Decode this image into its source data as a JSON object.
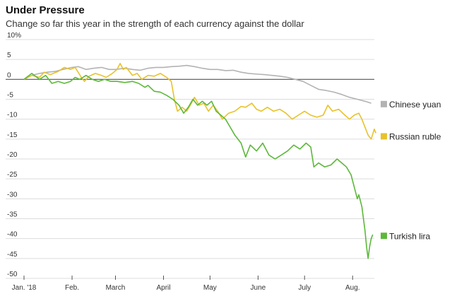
{
  "chart_data": {
    "type": "line",
    "title": "Under Pressure",
    "subtitle": "Change so far this year in the strength of each currency against the dollar",
    "y_unit_top_label": "10%",
    "ylim": [
      -50,
      10
    ],
    "y_ticks": [
      10,
      5,
      0,
      -5,
      -10,
      -15,
      -20,
      -25,
      -30,
      -35,
      -40,
      -45,
      -50
    ],
    "y_tick_labels": [
      "10%",
      "5",
      "0",
      "-5",
      "-10",
      "-15",
      "-20",
      "-25",
      "-30",
      "-35",
      "-40",
      "-45",
      "-50"
    ],
    "xlim": [
      0,
      226
    ],
    "x_ticks": [
      0,
      31,
      59,
      90,
      120,
      151,
      181,
      212
    ],
    "x_tick_labels": [
      "Jan. '18",
      "Feb.",
      "March",
      "April",
      "May",
      "June",
      "July",
      "Aug."
    ],
    "x_unit": "days since start of year",
    "grid": "horizontal",
    "legend_placement": "right, beside line ends",
    "series": [
      {
        "name": "Chinese yuan",
        "color": "#b3b3b3",
        "points": [
          [
            0,
            0
          ],
          [
            5,
            1
          ],
          [
            10,
            1.5
          ],
          [
            15,
            1.8
          ],
          [
            20,
            2
          ],
          [
            25,
            2.5
          ],
          [
            31,
            3
          ],
          [
            35,
            3.2
          ],
          [
            40,
            2.5
          ],
          [
            45,
            2.8
          ],
          [
            50,
            3
          ],
          [
            55,
            2.5
          ],
          [
            59,
            2.5
          ],
          [
            65,
            2.8
          ],
          [
            70,
            2.5
          ],
          [
            75,
            2.3
          ],
          [
            80,
            2.8
          ],
          [
            85,
            3
          ],
          [
            90,
            3
          ],
          [
            95,
            3.2
          ],
          [
            100,
            3.3
          ],
          [
            105,
            3.5
          ],
          [
            110,
            3.2
          ],
          [
            115,
            2.8
          ],
          [
            120,
            2.5
          ],
          [
            125,
            2.5
          ],
          [
            130,
            2.2
          ],
          [
            135,
            2.3
          ],
          [
            140,
            1.8
          ],
          [
            145,
            1.5
          ],
          [
            151,
            1.3
          ],
          [
            155,
            1.2
          ],
          [
            160,
            1
          ],
          [
            165,
            0.8
          ],
          [
            170,
            0.5
          ],
          [
            175,
            0
          ],
          [
            180,
            -0.5
          ],
          [
            185,
            -1.5
          ],
          [
            190,
            -2.5
          ],
          [
            195,
            -2.8
          ],
          [
            200,
            -3.2
          ],
          [
            205,
            -3.8
          ],
          [
            210,
            -4.5
          ],
          [
            215,
            -5
          ],
          [
            220,
            -5.5
          ],
          [
            224,
            -6
          ]
        ]
      },
      {
        "name": "Russian ruble",
        "color": "#e8c22b",
        "points": [
          [
            0,
            0
          ],
          [
            5,
            1
          ],
          [
            10,
            0.5
          ],
          [
            13,
            1.8
          ],
          [
            17,
            1.2
          ],
          [
            22,
            2
          ],
          [
            26,
            3
          ],
          [
            30,
            2.5
          ],
          [
            33,
            3
          ],
          [
            37,
            0.5
          ],
          [
            39,
            -0.5
          ],
          [
            42,
            0.8
          ],
          [
            46,
            1.5
          ],
          [
            50,
            1
          ],
          [
            53,
            0.5
          ],
          [
            57,
            1.5
          ],
          [
            60,
            2.5
          ],
          [
            62,
            4
          ],
          [
            64,
            2.5
          ],
          [
            66,
            3
          ],
          [
            70,
            1
          ],
          [
            73,
            1.5
          ],
          [
            76,
            0
          ],
          [
            80,
            1
          ],
          [
            84,
            0.8
          ],
          [
            88,
            1.5
          ],
          [
            92,
            0.5
          ],
          [
            95,
            -0.5
          ],
          [
            97,
            -5
          ],
          [
            99,
            -8
          ],
          [
            102,
            -7
          ],
          [
            105,
            -8
          ],
          [
            108,
            -6
          ],
          [
            110,
            -4.5
          ],
          [
            113,
            -6.5
          ],
          [
            116,
            -6
          ],
          [
            119,
            -8
          ],
          [
            122,
            -6.5
          ],
          [
            125,
            -8
          ],
          [
            128,
            -10
          ],
          [
            132,
            -8.5
          ],
          [
            136,
            -8
          ],
          [
            140,
            -6.8
          ],
          [
            143,
            -7
          ],
          [
            147,
            -6
          ],
          [
            150,
            -7.5
          ],
          [
            153,
            -8
          ],
          [
            157,
            -7
          ],
          [
            161,
            -8
          ],
          [
            165,
            -7.5
          ],
          [
            169,
            -8.5
          ],
          [
            173,
            -10
          ],
          [
            177,
            -9
          ],
          [
            181,
            -8
          ],
          [
            185,
            -9
          ],
          [
            189,
            -9.5
          ],
          [
            193,
            -9
          ],
          [
            196,
            -6.5
          ],
          [
            199,
            -8
          ],
          [
            203,
            -7.5
          ],
          [
            207,
            -9
          ],
          [
            210,
            -10
          ],
          [
            213,
            -9
          ],
          [
            216,
            -8.5
          ],
          [
            218,
            -10
          ],
          [
            220,
            -12
          ],
          [
            222,
            -14
          ],
          [
            224,
            -15
          ],
          [
            226,
            -12.5
          ],
          [
            227,
            -13.5
          ]
        ]
      },
      {
        "name": "Turkish lira",
        "color": "#5cb83a",
        "points": [
          [
            0,
            0
          ],
          [
            5,
            1.5
          ],
          [
            10,
            0
          ],
          [
            14,
            1
          ],
          [
            18,
            -1
          ],
          [
            22,
            -0.5
          ],
          [
            26,
            -1
          ],
          [
            30,
            -0.5
          ],
          [
            33,
            0.5
          ],
          [
            36,
            0
          ],
          [
            40,
            1
          ],
          [
            44,
            0
          ],
          [
            48,
            -0.5
          ],
          [
            52,
            0
          ],
          [
            56,
            -0.5
          ],
          [
            60,
            -0.5
          ],
          [
            65,
            -0.8
          ],
          [
            70,
            -0.5
          ],
          [
            74,
            -1
          ],
          [
            78,
            -2
          ],
          [
            80,
            -1.5
          ],
          [
            84,
            -3
          ],
          [
            88,
            -3.2
          ],
          [
            92,
            -4
          ],
          [
            96,
            -5
          ],
          [
            100,
            -6.5
          ],
          [
            103,
            -8.5
          ],
          [
            106,
            -7
          ],
          [
            109,
            -5
          ],
          [
            112,
            -6.5
          ],
          [
            115,
            -5.5
          ],
          [
            118,
            -6.5
          ],
          [
            121,
            -5.5
          ],
          [
            124,
            -8
          ],
          [
            127,
            -9
          ],
          [
            130,
            -10
          ],
          [
            133,
            -12
          ],
          [
            136,
            -14
          ],
          [
            140,
            -16
          ],
          [
            143,
            -19.5
          ],
          [
            146,
            -16.5
          ],
          [
            150,
            -18
          ],
          [
            154,
            -16
          ],
          [
            158,
            -19
          ],
          [
            162,
            -20
          ],
          [
            166,
            -19
          ],
          [
            170,
            -18
          ],
          [
            174,
            -16.5
          ],
          [
            178,
            -17.5
          ],
          [
            182,
            -16
          ],
          [
            185,
            -17
          ],
          [
            187,
            -22
          ],
          [
            190,
            -21
          ],
          [
            194,
            -22
          ],
          [
            198,
            -21.5
          ],
          [
            202,
            -20
          ],
          [
            205,
            -21
          ],
          [
            208,
            -22
          ],
          [
            211,
            -24
          ],
          [
            213,
            -27
          ],
          [
            215,
            -30
          ],
          [
            216,
            -29
          ],
          [
            218,
            -32
          ],
          [
            220,
            -38
          ],
          [
            221,
            -42
          ],
          [
            222,
            -45
          ],
          [
            223,
            -42
          ],
          [
            224,
            -40
          ],
          [
            225,
            -39
          ]
        ]
      }
    ]
  }
}
